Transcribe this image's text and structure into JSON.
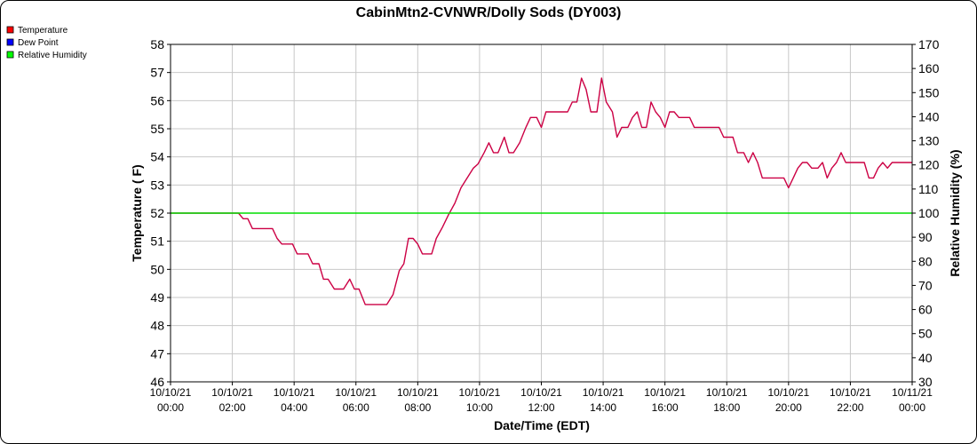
{
  "chart_data": {
    "type": "line",
    "title": "CabinMtn2-CVNWR/Dolly Sods (DY003)",
    "xlabel": "Date/Time (EDT)",
    "ylabel_left": "Temperature ( F)",
    "ylabel_right": "Relative Humidity (%)",
    "xlim": [
      0,
      24
    ],
    "ylim_left": [
      46,
      58
    ],
    "ylim_right": [
      30,
      170
    ],
    "grid": true,
    "legend_position": "top-left",
    "x_ticks": [
      {
        "x": 0,
        "date": "10/10/21",
        "time": "00:00"
      },
      {
        "x": 2,
        "date": "10/10/21",
        "time": "02:00"
      },
      {
        "x": 4,
        "date": "10/10/21",
        "time": "04:00"
      },
      {
        "x": 6,
        "date": "10/10/21",
        "time": "06:00"
      },
      {
        "x": 8,
        "date": "10/10/21",
        "time": "08:00"
      },
      {
        "x": 10,
        "date": "10/10/21",
        "time": "10:00"
      },
      {
        "x": 12,
        "date": "10/10/21",
        "time": "12:00"
      },
      {
        "x": 14,
        "date": "10/10/21",
        "time": "14:00"
      },
      {
        "x": 16,
        "date": "10/10/21",
        "time": "16:00"
      },
      {
        "x": 18,
        "date": "10/10/21",
        "time": "18:00"
      },
      {
        "x": 20,
        "date": "10/10/21",
        "time": "20:00"
      },
      {
        "x": 22,
        "date": "10/10/21",
        "time": "22:00"
      },
      {
        "x": 24,
        "date": "10/11/21",
        "time": "00:00"
      }
    ],
    "y_ticks_left": [
      46,
      47,
      48,
      49,
      50,
      51,
      52,
      53,
      54,
      55,
      56,
      57,
      58
    ],
    "y_ticks_right": [
      30,
      40,
      50,
      60,
      70,
      80,
      90,
      100,
      110,
      120,
      130,
      140,
      150,
      160,
      170
    ],
    "legend": [
      {
        "label": "Temperature",
        "color": "#ff0000"
      },
      {
        "label": "Dew Point",
        "color": "#0000ff"
      },
      {
        "label": "Relative Humidity",
        "color": "#00ff00"
      }
    ],
    "series": [
      {
        "name": "Temperature",
        "color": "#cc0044",
        "axis": "left",
        "points": [
          [
            0,
            52.0
          ],
          [
            2.2,
            52.0
          ],
          [
            2.35,
            51.8
          ],
          [
            2.5,
            51.8
          ],
          [
            2.65,
            51.45
          ],
          [
            3.0,
            51.45
          ],
          [
            3.3,
            51.45
          ],
          [
            3.45,
            51.1
          ],
          [
            3.6,
            50.9
          ],
          [
            3.95,
            50.9
          ],
          [
            4.1,
            50.55
          ],
          [
            4.45,
            50.55
          ],
          [
            4.6,
            50.2
          ],
          [
            4.8,
            50.2
          ],
          [
            4.95,
            49.65
          ],
          [
            5.1,
            49.65
          ],
          [
            5.3,
            49.3
          ],
          [
            5.6,
            49.3
          ],
          [
            5.8,
            49.65
          ],
          [
            5.95,
            49.3
          ],
          [
            6.1,
            49.3
          ],
          [
            6.3,
            48.75
          ],
          [
            6.6,
            48.75
          ],
          [
            6.8,
            48.75
          ],
          [
            7.0,
            48.75
          ],
          [
            7.2,
            49.1
          ],
          [
            7.4,
            49.95
          ],
          [
            7.55,
            50.2
          ],
          [
            7.7,
            51.1
          ],
          [
            7.85,
            51.1
          ],
          [
            8.0,
            50.9
          ],
          [
            8.15,
            50.55
          ],
          [
            8.45,
            50.55
          ],
          [
            8.6,
            51.1
          ],
          [
            8.8,
            51.5
          ],
          [
            9.0,
            51.95
          ],
          [
            9.2,
            52.35
          ],
          [
            9.4,
            52.9
          ],
          [
            9.6,
            53.25
          ],
          [
            9.8,
            53.6
          ],
          [
            9.95,
            53.75
          ],
          [
            10.15,
            54.15
          ],
          [
            10.3,
            54.5
          ],
          [
            10.45,
            54.15
          ],
          [
            10.6,
            54.15
          ],
          [
            10.8,
            54.7
          ],
          [
            10.95,
            54.15
          ],
          [
            11.1,
            54.15
          ],
          [
            11.3,
            54.5
          ],
          [
            11.5,
            55.05
          ],
          [
            11.65,
            55.4
          ],
          [
            11.85,
            55.4
          ],
          [
            12.0,
            55.05
          ],
          [
            12.15,
            55.6
          ],
          [
            12.4,
            55.6
          ],
          [
            12.7,
            55.6
          ],
          [
            12.85,
            55.6
          ],
          [
            13.0,
            55.95
          ],
          [
            13.15,
            55.95
          ],
          [
            13.3,
            56.8
          ],
          [
            13.45,
            56.4
          ],
          [
            13.6,
            55.6
          ],
          [
            13.8,
            55.6
          ],
          [
            13.95,
            56.8
          ],
          [
            14.1,
            55.95
          ],
          [
            14.3,
            55.6
          ],
          [
            14.45,
            54.7
          ],
          [
            14.6,
            55.05
          ],
          [
            14.8,
            55.05
          ],
          [
            14.95,
            55.4
          ],
          [
            15.1,
            55.6
          ],
          [
            15.25,
            55.05
          ],
          [
            15.4,
            55.05
          ],
          [
            15.55,
            55.95
          ],
          [
            15.7,
            55.6
          ],
          [
            15.85,
            55.4
          ],
          [
            16.0,
            55.05
          ],
          [
            16.15,
            55.6
          ],
          [
            16.3,
            55.6
          ],
          [
            16.45,
            55.4
          ],
          [
            16.8,
            55.4
          ],
          [
            16.95,
            55.05
          ],
          [
            17.6,
            55.05
          ],
          [
            17.75,
            55.05
          ],
          [
            17.9,
            54.7
          ],
          [
            18.2,
            54.7
          ],
          [
            18.35,
            54.15
          ],
          [
            18.55,
            54.15
          ],
          [
            18.7,
            53.8
          ],
          [
            18.85,
            54.15
          ],
          [
            19.0,
            53.8
          ],
          [
            19.15,
            53.25
          ],
          [
            19.7,
            53.25
          ],
          [
            19.85,
            53.25
          ],
          [
            20.0,
            52.9
          ],
          [
            20.15,
            53.25
          ],
          [
            20.3,
            53.6
          ],
          [
            20.45,
            53.8
          ],
          [
            20.6,
            53.8
          ],
          [
            20.75,
            53.6
          ],
          [
            20.95,
            53.6
          ],
          [
            21.1,
            53.8
          ],
          [
            21.25,
            53.25
          ],
          [
            21.4,
            53.6
          ],
          [
            21.55,
            53.8
          ],
          [
            21.7,
            54.15
          ],
          [
            21.85,
            53.8
          ],
          [
            22.1,
            53.8
          ],
          [
            22.45,
            53.8
          ],
          [
            22.6,
            53.25
          ],
          [
            22.75,
            53.25
          ],
          [
            22.9,
            53.6
          ],
          [
            23.05,
            53.8
          ],
          [
            23.2,
            53.6
          ],
          [
            23.35,
            53.8
          ],
          [
            23.7,
            53.8
          ],
          [
            24.0,
            53.8
          ]
        ]
      },
      {
        "name": "Relative Humidity",
        "color": "#00dd00",
        "axis": "right",
        "points": [
          [
            0,
            100
          ],
          [
            24,
            100
          ]
        ]
      }
    ]
  }
}
